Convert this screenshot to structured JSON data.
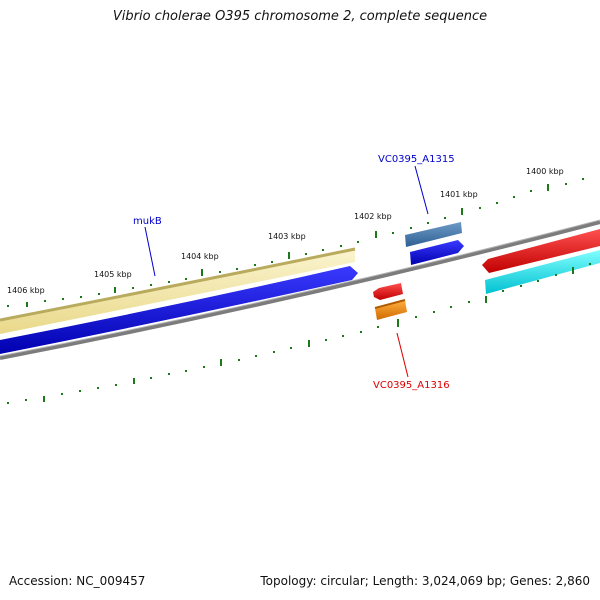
{
  "title": "Vibrio cholerae O395 chromosome 2, complete sequence",
  "footer": {
    "accession": "Accession: NC_009457",
    "summary": "Topology: circular; Length: 3,024,069 bp; Genes: 2,860"
  },
  "scale_labels": [
    "1400 kbp",
    "1401 kbp",
    "1402 kbp",
    "1403 kbp",
    "1404 kbp",
    "1405 kbp",
    "1406 kbp"
  ],
  "gene_labels": [
    {
      "text": "VC0395_A1315",
      "color": "#0000cc"
    },
    {
      "text": "mukB",
      "color": "#0000cc"
    },
    {
      "text": "VC0395_A1316",
      "color": "#dd0000"
    }
  ],
  "colors": {
    "backbone": "#808080",
    "tick": "#1a7a1a",
    "khaki": "#f3e7a8",
    "khaki_edge": "#b9ab5e",
    "blue": "#0000e0",
    "steelblue": "#4a7fb0",
    "red": "#ee0000",
    "orange": "#ff8c00",
    "cyan": "#00e8f0"
  }
}
